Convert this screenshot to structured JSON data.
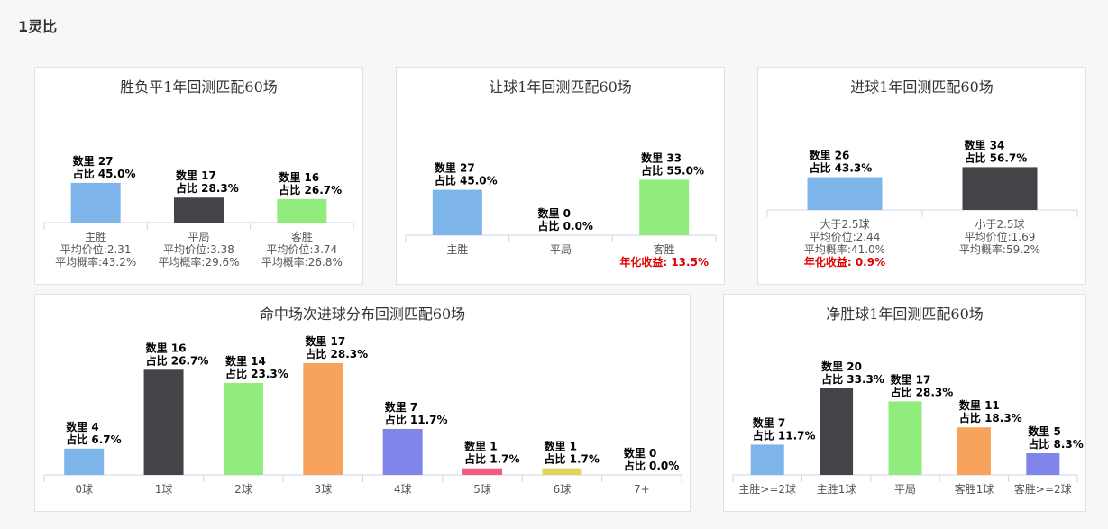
{
  "page": {
    "title": "1灵比"
  },
  "colors": {
    "blue": "#7db4ea",
    "dark": "#434348",
    "green": "#90ed7d",
    "orange": "#f7a35c",
    "purple": "#8085e9",
    "pink": "#f15c80",
    "yellow": "#e4d354",
    "red": "#e00000",
    "axis": "#ccd6eb",
    "text": "#555555"
  },
  "chart_data": [
    {
      "type": "bar",
      "title": "胜负平1年回测匹配60场",
      "categories": [
        "主胜",
        "平局",
        "客胜"
      ],
      "values": [
        27,
        17,
        16
      ],
      "percents": [
        "45.0%",
        "28.3%",
        "26.7%"
      ],
      "colors": [
        "blue",
        "dark",
        "green"
      ],
      "count_prefix": "数里",
      "pct_prefix": "占比",
      "sublabels": [
        [
          "平均价位:2.31",
          "平均概率:43.2%"
        ],
        [
          "平均价位:3.38",
          "平均概率:29.6%"
        ],
        [
          "平均价位:3.74",
          "平均概率:26.8%"
        ]
      ],
      "ylim": [
        0,
        60
      ]
    },
    {
      "type": "bar",
      "title": "让球1年回测匹配60场",
      "categories": [
        "主胜",
        "平局",
        "客胜"
      ],
      "values": [
        27,
        0,
        33
      ],
      "percents": [
        "45.0%",
        "0.0%",
        "55.0%"
      ],
      "colors": [
        "blue",
        "dark",
        "green"
      ],
      "count_prefix": "数里",
      "pct_prefix": "占比",
      "sublabels": [
        [],
        [],
        []
      ],
      "highlight": {
        "index": 2,
        "text": "年化收益: 13.5%"
      },
      "ylim": [
        0,
        60
      ]
    },
    {
      "type": "bar",
      "title": "进球1年回测匹配60场",
      "categories": [
        "大于2.5球",
        "小于2.5球"
      ],
      "values": [
        26,
        34
      ],
      "percents": [
        "43.3%",
        "56.7%"
      ],
      "colors": [
        "blue",
        "dark"
      ],
      "count_prefix": "数里",
      "pct_prefix": "占比",
      "sublabels": [
        [
          "平均价位:2.44",
          "平均概率:41.0%"
        ],
        [
          "平均价位:1.69",
          "平均概率:59.2%"
        ]
      ],
      "highlight": {
        "index": 0,
        "text": "年化收益: 0.9%"
      },
      "ylim": [
        0,
        60
      ]
    },
    {
      "type": "bar",
      "title": "命中场次进球分布回测匹配60场",
      "categories": [
        "0球",
        "1球",
        "2球",
        "3球",
        "4球",
        "5球",
        "6球",
        "7+"
      ],
      "values": [
        4,
        16,
        14,
        17,
        7,
        1,
        1,
        0
      ],
      "percents": [
        "6.7%",
        "26.7%",
        "23.3%",
        "28.3%",
        "11.7%",
        "1.7%",
        "1.7%",
        "0.0%"
      ],
      "colors": [
        "blue",
        "dark",
        "green",
        "orange",
        "purple",
        "pink",
        "yellow",
        "blue"
      ],
      "count_prefix": "数里",
      "pct_prefix": "占比",
      "ylim": [
        0,
        17
      ]
    },
    {
      "type": "bar",
      "title": "净胜球1年回测匹配60场",
      "categories": [
        "主胜>=2球",
        "主胜1球",
        "平局",
        "客胜1球",
        "客胜>=2球"
      ],
      "values": [
        7,
        20,
        17,
        11,
        5
      ],
      "percents": [
        "11.7%",
        "33.3%",
        "28.3%",
        "18.3%",
        "8.3%"
      ],
      "colors": [
        "blue",
        "dark",
        "green",
        "orange",
        "purple"
      ],
      "count_prefix": "数里",
      "pct_prefix": "占比",
      "ylim": [
        0,
        20
      ]
    }
  ]
}
